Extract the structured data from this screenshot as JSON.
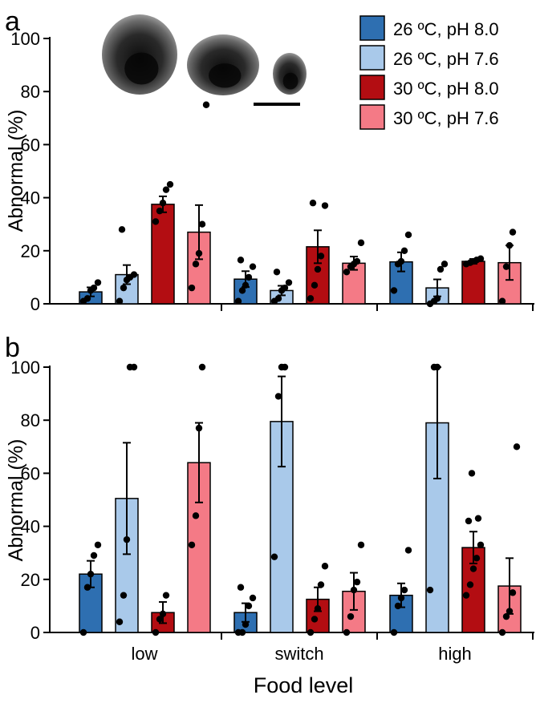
{
  "figure": {
    "x_axis_title": "Food level",
    "categories": [
      "low",
      "switch",
      "high"
    ]
  },
  "legend": {
    "position": "top-right of panel a",
    "entries": [
      {
        "label": "26 ºC, pH 8.0",
        "color": "#2e6fb1"
      },
      {
        "label": "26 ºC, pH 7.6",
        "color": "#a9c9ea"
      },
      {
        "label": "30 ºC, pH 8.0",
        "color": "#b30d12"
      },
      {
        "label": "30 ºC, pH 7.6",
        "color": "#f47a86"
      }
    ]
  },
  "inset": {
    "description_icon": "larvae-micrograph-icon",
    "scale_bar": true
  },
  "chart_data": [
    {
      "panel": "a",
      "type": "bar",
      "ylabel": "Abnormal (%)",
      "ylim": [
        0,
        100
      ],
      "yticks": [
        0,
        20,
        40,
        60,
        80,
        100
      ],
      "categories": [
        "low",
        "switch",
        "high"
      ],
      "error_bars": "SE",
      "series": [
        {
          "name": "26 ºC, pH 8.0",
          "color": "#2e6fb1",
          "values": [
            4.5,
            9.3,
            15.8
          ],
          "se": [
            1.7,
            3.0,
            3.6
          ],
          "points": [
            [
              1,
              2,
              5,
              6,
              8
            ],
            [
              1,
              5,
              7,
              10,
              14,
              16.5
            ],
            [
              5,
              15,
              16,
              20,
              26
            ]
          ]
        },
        {
          "name": "26 ºC, pH 7.6",
          "color": "#a9c9ea",
          "values": [
            11,
            5,
            6
          ],
          "se": [
            3.6,
            1.8,
            3.2
          ],
          "points": [
            [
              1,
              6,
              9,
              10,
              11,
              28
            ],
            [
              1,
              2,
              5,
              6,
              8,
              12
            ],
            [
              0,
              1,
              2,
              13,
              15
            ]
          ]
        },
        {
          "name": "30 ºC, pH 8.0",
          "color": "#b30d12",
          "values": [
            37.5,
            21.5,
            16
          ],
          "se": [
            3.0,
            6.2,
            0.9
          ],
          "points": [
            [
              31,
              35,
              38,
              43,
              45
            ],
            [
              2,
              7,
              13,
              18,
              37,
              38
            ],
            [
              15,
              15.5,
              16,
              16.5,
              17
            ]
          ]
        },
        {
          "name": "30 ºC, pH 7.6",
          "color": "#f47a86",
          "values": [
            27,
            15.3,
            15.5
          ],
          "se": [
            10.2,
            2.5,
            6.5
          ],
          "points": [
            [
              6,
              15,
              19,
              30,
              75
            ],
            [
              12,
              14,
              15,
              16,
              23
            ],
            [
              1,
              14,
              22,
              27
            ]
          ]
        }
      ]
    },
    {
      "panel": "b",
      "type": "bar",
      "ylabel": "Abnormal (%)",
      "xlabel": "Food level",
      "ylim": [
        0,
        100
      ],
      "yticks": [
        0,
        20,
        40,
        60,
        80,
        100
      ],
      "categories": [
        "low",
        "switch",
        "high"
      ],
      "error_bars": "SE",
      "series": [
        {
          "name": "26 ºC, pH 8.0",
          "color": "#2e6fb1",
          "values": [
            22,
            7.5,
            14
          ],
          "se": [
            5,
            3.5,
            4.5
          ],
          "points": [
            [
              0,
              17,
              22,
              29,
              33
            ],
            [
              0,
              0,
              3,
              10,
              13,
              17
            ],
            [
              0,
              10,
              13,
              16,
              31
            ]
          ]
        },
        {
          "name": "26 ºC, pH 7.6",
          "color": "#a9c9ea",
          "values": [
            50.5,
            79.5,
            79
          ],
          "se": [
            21,
            17,
            21
          ],
          "points": [
            [
              4,
              14,
              35,
              100,
              100
            ],
            [
              28.5,
              89,
              100,
              100
            ],
            [
              16,
              100,
              100
            ]
          ]
        },
        {
          "name": "30 ºC, pH 8.0",
          "color": "#b30d12",
          "values": [
            7.5,
            12.5,
            32
          ],
          "se": [
            4,
            4.5,
            6
          ],
          "points": [
            [
              0,
              5,
              7,
              14
            ],
            [
              0,
              5,
              9,
              18,
              25
            ],
            [
              14,
              18,
              24,
              28,
              33,
              42,
              43,
              60
            ]
          ]
        },
        {
          "name": "30 ºC, pH 7.6",
          "color": "#f47a86",
          "values": [
            64,
            15.5,
            17.5
          ],
          "se": [
            15,
            7,
            10.5
          ],
          "points": [
            [
              33,
              44,
              77,
              100
            ],
            [
              0,
              6,
              16,
              19,
              33
            ],
            [
              0,
              6,
              8,
              15,
              70
            ]
          ]
        }
      ]
    }
  ],
  "panel_labels": [
    "a",
    "b"
  ]
}
